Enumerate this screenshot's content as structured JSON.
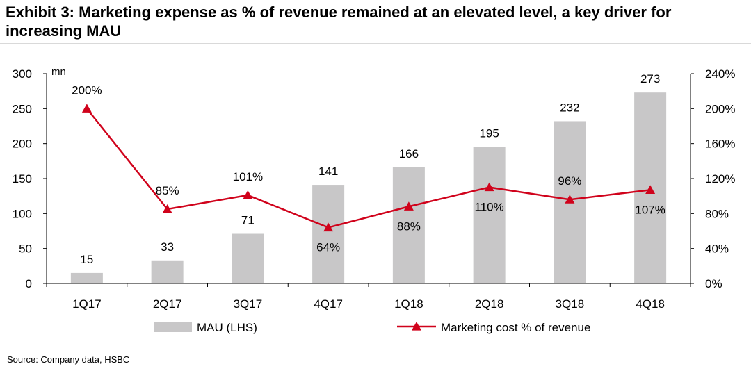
{
  "title": "Exhibit 3: Marketing expense as % of revenue remained at an elevated level, a key driver for increasing MAU",
  "source": "Source: Company data, HSBC",
  "colors": {
    "bar": "#c8c7c8",
    "line": "#d0021b",
    "axis": "#000000"
  },
  "chart_data": {
    "type": "bar+line",
    "categories": [
      "1Q17",
      "2Q17",
      "3Q17",
      "4Q17",
      "1Q18",
      "2Q18",
      "3Q18",
      "4Q18"
    ],
    "series": [
      {
        "name": "MAU (LHS)",
        "type": "bar",
        "axis": "left",
        "values": [
          15,
          33,
          71,
          141,
          166,
          195,
          232,
          273
        ],
        "labels": [
          "15",
          "33",
          "71",
          "141",
          "166",
          "195",
          "232",
          "273"
        ]
      },
      {
        "name": "Marketing cost % of revenue",
        "type": "line",
        "axis": "right",
        "values": [
          200,
          85,
          101,
          64,
          88,
          110,
          96,
          107
        ],
        "labels": [
          "200%",
          "85%",
          "101%",
          "64%",
          "88%",
          "110%",
          "96%",
          "107%"
        ]
      }
    ],
    "left_axis": {
      "unit_label": "mn",
      "range": [
        0,
        300
      ],
      "ticks": [
        {
          "value": 0,
          "label": "0"
        },
        {
          "value": 50,
          "label": "50"
        },
        {
          "value": 100,
          "label": "100"
        },
        {
          "value": 150,
          "label": "150"
        },
        {
          "value": 200,
          "label": "200"
        },
        {
          "value": 250,
          "label": "250"
        },
        {
          "value": 300,
          "label": "300"
        }
      ]
    },
    "right_axis": {
      "range": [
        0,
        240
      ],
      "ticks": [
        {
          "value": 0,
          "label": "0%"
        },
        {
          "value": 40,
          "label": "40%"
        },
        {
          "value": 80,
          "label": "80%"
        },
        {
          "value": 120,
          "label": "120%"
        },
        {
          "value": 160,
          "label": "160%"
        },
        {
          "value": 200,
          "label": "200%"
        },
        {
          "value": 240,
          "label": "240%"
        }
      ]
    },
    "legend": {
      "position": "bottom",
      "items": [
        {
          "label": "MAU (LHS)",
          "kind": "bar"
        },
        {
          "label": "Marketing cost % of revenue",
          "kind": "line-triangle"
        }
      ]
    },
    "grid": false
  }
}
